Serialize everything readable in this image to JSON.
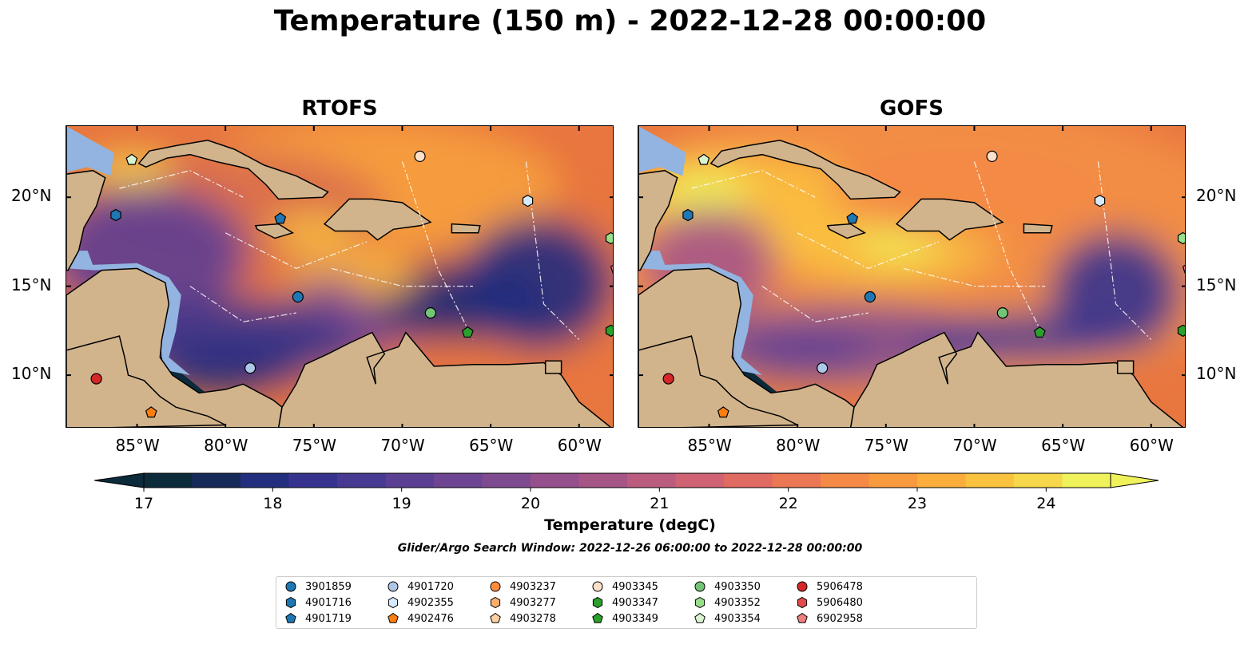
{
  "title": "Temperature (150 m) - 2022-12-28 00:00:00",
  "panels": [
    {
      "title": "RTOFS",
      "id": "rtofs"
    },
    {
      "title": "GOFS",
      "id": "gofs"
    }
  ],
  "axes": {
    "lon_ticks": [
      "85°W",
      "80°W",
      "75°W",
      "70°W",
      "65°W",
      "60°W"
    ],
    "lat_ticks": [
      "20°N",
      "15°N",
      "10°N"
    ],
    "lon_range": [
      -89,
      -58
    ],
    "lat_range": [
      7,
      24
    ]
  },
  "colorbar": {
    "label": "Temperature (degC)",
    "ticks": [
      "17",
      "18",
      "19",
      "20",
      "21",
      "22",
      "23",
      "24"
    ],
    "range": [
      17,
      24.5
    ],
    "extend": "both",
    "colors": [
      "#0b2a3a",
      "#162a5a",
      "#232e7f",
      "#35338f",
      "#463a92",
      "#5a3f93",
      "#6d4592",
      "#7f4b90",
      "#944f8c",
      "#a65587",
      "#bb5b7e",
      "#cf6373",
      "#e06b62",
      "#ec7754",
      "#f48a46",
      "#f89b3e",
      "#fbae3c",
      "#f9c23f",
      "#f6d84a",
      "#eff25a"
    ]
  },
  "search_window": "Glider/Argo Search Window: 2022-12-26 06:00:00 to 2022-12-28 00:00:00",
  "legend": [
    {
      "id": "3901859",
      "marker": "circle",
      "color": "#1f77b4"
    },
    {
      "id": "4901716",
      "marker": "hexagon",
      "color": "#1f77b4"
    },
    {
      "id": "4901719",
      "marker": "pentagon",
      "color": "#1f77b4"
    },
    {
      "id": "4901720",
      "marker": "circle",
      "color": "#aec7e8"
    },
    {
      "id": "4902355",
      "marker": "hexagon",
      "color": "#d6eaff"
    },
    {
      "id": "4902476",
      "marker": "pentagon",
      "color": "#ff7f0e"
    },
    {
      "id": "4903237",
      "marker": "circle",
      "color": "#fd8d3c"
    },
    {
      "id": "4903277",
      "marker": "hexagon",
      "color": "#fdae6b"
    },
    {
      "id": "4903278",
      "marker": "pentagon",
      "color": "#fdd0a2"
    },
    {
      "id": "4903345",
      "marker": "circle",
      "color": "#fde0c8"
    },
    {
      "id": "4903347",
      "marker": "hexagon",
      "color": "#2ca02c"
    },
    {
      "id": "4903349",
      "marker": "pentagon",
      "color": "#2ca02c"
    },
    {
      "id": "4903350",
      "marker": "circle",
      "color": "#74c476"
    },
    {
      "id": "4903352",
      "marker": "hexagon",
      "color": "#98df8a"
    },
    {
      "id": "4903354",
      "marker": "pentagon",
      "color": "#d9f5d0"
    },
    {
      "id": "5906478",
      "marker": "circle",
      "color": "#d62728"
    },
    {
      "id": "5906480",
      "marker": "hexagon",
      "color": "#e34a4a"
    },
    {
      "id": "6902958",
      "marker": "pentagon",
      "color": "#f08080"
    }
  ],
  "floats": [
    {
      "id": "3901859",
      "lon": -75.9,
      "lat": 14.4
    },
    {
      "id": "4901716",
      "lon": -86.2,
      "lat": 19.0
    },
    {
      "id": "4901719",
      "lon": -76.9,
      "lat": 18.8
    },
    {
      "id": "4901720",
      "lon": -78.6,
      "lat": 10.4
    },
    {
      "id": "4902355",
      "lon": -62.9,
      "lat": 19.8
    },
    {
      "id": "4902476",
      "lon": -84.2,
      "lat": 7.9
    },
    {
      "id": "4903345",
      "lon": -69.0,
      "lat": 22.3
    },
    {
      "id": "4903347",
      "lon": -58.2,
      "lat": 12.5
    },
    {
      "id": "4903349",
      "lon": -66.3,
      "lat": 12.4
    },
    {
      "id": "4903350",
      "lon": -68.4,
      "lat": 13.5
    },
    {
      "id": "4903352",
      "lon": -58.2,
      "lat": 17.7
    },
    {
      "id": "4903354",
      "lon": -85.3,
      "lat": 22.1
    },
    {
      "id": "5906478",
      "lon": -87.3,
      "lat": 9.8
    },
    {
      "id": "6902958",
      "lon": -57.9,
      "lat": 16.0
    }
  ]
}
